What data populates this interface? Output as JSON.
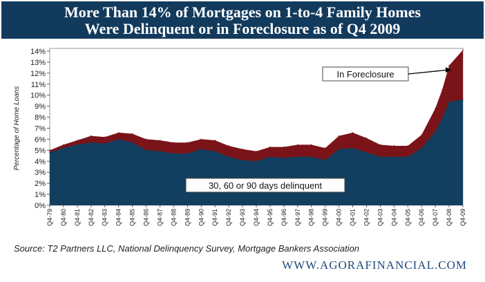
{
  "title": {
    "line1": "More Than 14% of Mortgages on 1-to-4 Family Homes",
    "line2": "Were Delinquent or in Foreclosure as of Q4 2009"
  },
  "source": "Source: T2 Partners LLC, National Delinquency Survey, Mortgage Bankers Association",
  "website": "WWW.AGORAFINANCIAL.COM",
  "colors": {
    "header": "#123a5c",
    "delinquent": "#123f5f",
    "foreclosure": "#7a1419",
    "site": "#1d4a7a"
  },
  "chart_data": {
    "type": "area",
    "stacked": true,
    "ylabel": "Percentage of Home Loans",
    "xlabel": "",
    "ylim": [
      0,
      14
    ],
    "y_ticks": [
      "0%",
      "1%",
      "2%",
      "3%",
      "4%",
      "5%",
      "6%",
      "7%",
      "8%",
      "9%",
      "10%",
      "11%",
      "12%",
      "13%",
      "14%"
    ],
    "x": [
      1979.75,
      1980.75,
      1981.75,
      1982.75,
      1983.75,
      1984.75,
      1985.75,
      1986.75,
      1987.75,
      1988.75,
      1989.75,
      1990.75,
      1991.75,
      1992.75,
      1993.75,
      1994.75,
      1995.75,
      1996.75,
      1997.75,
      1998.75,
      1999.75,
      2000.75,
      2001.75,
      2002.75,
      2003.75,
      2004.75,
      2005.75,
      2006.75,
      2007.75,
      2008.25,
      2008.75,
      2009.75
    ],
    "categories": [
      "Q4-79",
      "Q4-80",
      "Q4-81",
      "Q4-82",
      "Q4-83",
      "Q4-84",
      "Q4-85",
      "Q4-86",
      "Q4-87",
      "Q4-88",
      "Q4-89",
      "Q4-90",
      "Q4-91",
      "Q4-92",
      "Q4-93",
      "Q4-94",
      "Q4-95",
      "Q4-96",
      "Q4-97",
      "Q4-98",
      "Q4-99",
      "Q4-00",
      "Q4-01",
      "Q4-02",
      "Q4-03",
      "Q4-04",
      "Q4-05",
      "Q4-06",
      "Q4-07",
      "Q2-08",
      "Q4-08",
      "Q4-09"
    ],
    "series": [
      {
        "name": "30, 60 or 90 days delinquent",
        "values": [
          4.8,
          5.2,
          5.5,
          5.7,
          5.6,
          6.0,
          5.7,
          5.0,
          4.9,
          4.7,
          4.7,
          5.1,
          4.9,
          4.4,
          4.1,
          4.0,
          4.4,
          4.3,
          4.4,
          4.4,
          4.1,
          5.1,
          5.2,
          4.8,
          4.4,
          4.4,
          4.4,
          5.2,
          6.7,
          7.9,
          9.4,
          9.6
        ]
      },
      {
        "name": "In Foreclosure",
        "values": [
          0.2,
          0.3,
          0.4,
          0.6,
          0.6,
          0.6,
          0.8,
          1.0,
          1.0,
          1.0,
          1.0,
          0.9,
          1.0,
          1.0,
          1.0,
          0.9,
          0.9,
          1.0,
          1.1,
          1.1,
          1.1,
          1.2,
          1.4,
          1.3,
          1.1,
          1.0,
          1.0,
          1.2,
          2.1,
          2.6,
          3.3,
          4.5
        ]
      }
    ],
    "annotations": [
      {
        "label": "In Foreclosure",
        "target": "foreclosure"
      },
      {
        "label": "30, 60 or 90 days delinquent",
        "target": "delinquent"
      }
    ],
    "legend": "none (inline annotations)"
  }
}
